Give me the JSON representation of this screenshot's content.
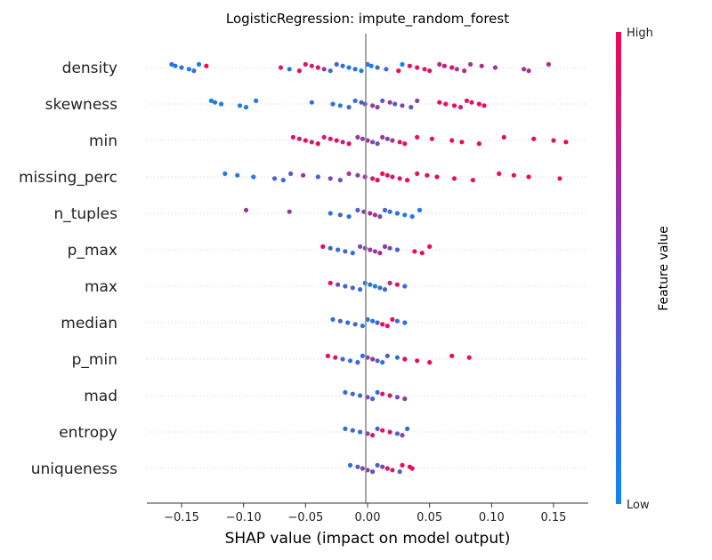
{
  "chart_data": {
    "type": "scatter",
    "subtype": "shap-beeswarm",
    "title": "LogisticRegression: impute_random_forest",
    "xlabel": "SHAP value (impact on model output)",
    "xlim": [
      -0.178,
      0.178
    ],
    "xticks": [
      -0.15,
      -0.1,
      -0.05,
      0.0,
      0.05,
      0.1,
      0.15
    ],
    "xtick_labels": [
      "−0.15",
      "−0.10",
      "−0.05",
      "0.00",
      "0.05",
      "0.10",
      "0.15"
    ],
    "grid": false,
    "colorbar": {
      "label": "Feature value",
      "high_label": "High",
      "low_label": "Low",
      "low_color": "#008bfb",
      "high_color": "#ff0052"
    },
    "features": [
      {
        "name": "density",
        "points": [
          [
            -0.158,
            0.2
          ],
          [
            -0.155,
            0.1
          ],
          [
            -0.15,
            0.15
          ],
          [
            -0.144,
            0.1
          ],
          [
            -0.14,
            0.2
          ],
          [
            -0.136,
            0.1
          ],
          [
            -0.13,
            0.95
          ],
          [
            -0.07,
            0.8
          ],
          [
            -0.063,
            0.1
          ],
          [
            -0.055,
            0.9
          ],
          [
            -0.05,
            0.85
          ],
          [
            -0.045,
            0.8
          ],
          [
            -0.04,
            0.9
          ],
          [
            -0.035,
            0.6
          ],
          [
            -0.03,
            0.2
          ],
          [
            -0.025,
            0.3
          ],
          [
            -0.02,
            0.2
          ],
          [
            -0.015,
            0.1
          ],
          [
            -0.01,
            0.2
          ],
          [
            -0.005,
            0.1
          ],
          [
            0.0,
            0.15
          ],
          [
            0.003,
            0.1
          ],
          [
            0.008,
            0.2
          ],
          [
            0.015,
            0.3
          ],
          [
            0.025,
            0.9
          ],
          [
            0.028,
            0.1
          ],
          [
            0.034,
            0.9
          ],
          [
            0.04,
            0.95
          ],
          [
            0.046,
            0.8
          ],
          [
            0.05,
            0.9
          ],
          [
            0.058,
            0.7
          ],
          [
            0.062,
            0.8
          ],
          [
            0.068,
            0.9
          ],
          [
            0.072,
            0.6
          ],
          [
            0.078,
            0.75
          ],
          [
            0.083,
            0.6
          ],
          [
            0.092,
            0.7
          ],
          [
            0.103,
            0.6
          ],
          [
            0.126,
            0.6
          ],
          [
            0.13,
            0.7
          ],
          [
            0.146,
            0.65
          ]
        ]
      },
      {
        "name": "skewness",
        "points": [
          [
            -0.126,
            0.1
          ],
          [
            -0.123,
            0.15
          ],
          [
            -0.118,
            0.1
          ],
          [
            -0.103,
            0.15
          ],
          [
            -0.098,
            0.1
          ],
          [
            -0.09,
            0.15
          ],
          [
            -0.045,
            0.2
          ],
          [
            -0.028,
            0.2
          ],
          [
            -0.022,
            0.1
          ],
          [
            -0.015,
            0.3
          ],
          [
            -0.01,
            0.2
          ],
          [
            -0.005,
            0.4
          ],
          [
            -0.002,
            0.3
          ],
          [
            0.004,
            0.6
          ],
          [
            0.008,
            0.5
          ],
          [
            0.012,
            0.4
          ],
          [
            0.018,
            0.6
          ],
          [
            0.022,
            0.3
          ],
          [
            0.028,
            0.5
          ],
          [
            0.035,
            0.4
          ],
          [
            0.04,
            0.5
          ],
          [
            0.058,
            0.95
          ],
          [
            0.063,
            0.9
          ],
          [
            0.07,
            0.95
          ],
          [
            0.075,
            0.7
          ],
          [
            0.08,
            0.8
          ],
          [
            0.084,
            0.9
          ],
          [
            0.09,
            0.95
          ],
          [
            0.094,
            0.9
          ]
        ]
      },
      {
        "name": "min",
        "points": [
          [
            -0.06,
            0.9
          ],
          [
            -0.055,
            0.8
          ],
          [
            -0.05,
            0.95
          ],
          [
            -0.045,
            0.8
          ],
          [
            -0.04,
            0.9
          ],
          [
            -0.035,
            0.8
          ],
          [
            -0.03,
            0.85
          ],
          [
            -0.025,
            0.9
          ],
          [
            -0.02,
            0.7
          ],
          [
            -0.015,
            0.85
          ],
          [
            -0.008,
            0.6
          ],
          [
            -0.004,
            0.5
          ],
          [
            0.0,
            0.7
          ],
          [
            0.004,
            0.5
          ],
          [
            0.008,
            0.4
          ],
          [
            0.012,
            0.6
          ],
          [
            0.016,
            0.5
          ],
          [
            0.02,
            0.7
          ],
          [
            0.026,
            0.9
          ],
          [
            0.03,
            0.9
          ],
          [
            0.04,
            0.9
          ],
          [
            0.052,
            0.9
          ],
          [
            0.068,
            0.95
          ],
          [
            0.076,
            0.9
          ],
          [
            0.09,
            0.95
          ],
          [
            0.11,
            0.9
          ],
          [
            0.134,
            0.95
          ],
          [
            0.15,
            0.9
          ],
          [
            0.16,
            0.95
          ]
        ]
      },
      {
        "name": "missing_perc",
        "points": [
          [
            -0.115,
            0.1
          ],
          [
            -0.105,
            0.15
          ],
          [
            -0.092,
            0.1
          ],
          [
            -0.075,
            0.3
          ],
          [
            -0.068,
            0.2
          ],
          [
            -0.062,
            0.4
          ],
          [
            -0.052,
            0.6
          ],
          [
            -0.04,
            0.3
          ],
          [
            -0.03,
            0.5
          ],
          [
            -0.022,
            0.4
          ],
          [
            -0.015,
            0.6
          ],
          [
            -0.008,
            0.5
          ],
          [
            -0.002,
            0.6
          ],
          [
            0.004,
            0.85
          ],
          [
            0.008,
            0.9
          ],
          [
            0.012,
            0.95
          ],
          [
            0.016,
            0.9
          ],
          [
            0.02,
            0.8
          ],
          [
            0.026,
            0.9
          ],
          [
            0.032,
            0.95
          ],
          [
            0.04,
            0.9
          ],
          [
            0.048,
            0.95
          ],
          [
            0.056,
            0.9
          ],
          [
            0.07,
            0.95
          ],
          [
            0.085,
            0.9
          ],
          [
            0.106,
            0.95
          ],
          [
            0.118,
            0.9
          ],
          [
            0.13,
            0.95
          ],
          [
            0.155,
            0.9
          ]
        ]
      },
      {
        "name": "n_tuples",
        "points": [
          [
            -0.098,
            0.6
          ],
          [
            -0.063,
            0.6
          ],
          [
            -0.03,
            0.2
          ],
          [
            -0.022,
            0.3
          ],
          [
            -0.015,
            0.2
          ],
          [
            -0.008,
            0.3
          ],
          [
            -0.003,
            0.5
          ],
          [
            0.002,
            0.6
          ],
          [
            0.006,
            0.7
          ],
          [
            0.01,
            0.4
          ],
          [
            0.014,
            0.3
          ],
          [
            0.018,
            0.2
          ],
          [
            0.024,
            0.2
          ],
          [
            0.03,
            0.1
          ],
          [
            0.036,
            0.15
          ],
          [
            0.042,
            0.1
          ]
        ]
      },
      {
        "name": "p_max",
        "points": [
          [
            -0.036,
            0.95
          ],
          [
            -0.03,
            0.3
          ],
          [
            -0.024,
            0.2
          ],
          [
            -0.018,
            0.3
          ],
          [
            -0.012,
            0.2
          ],
          [
            -0.006,
            0.4
          ],
          [
            -0.002,
            0.5
          ],
          [
            0.002,
            0.6
          ],
          [
            0.006,
            0.5
          ],
          [
            0.01,
            0.7
          ],
          [
            0.014,
            0.6
          ],
          [
            0.018,
            0.4
          ],
          [
            0.024,
            0.3
          ],
          [
            0.038,
            0.95
          ],
          [
            0.044,
            0.9
          ],
          [
            0.05,
            0.95
          ]
        ]
      },
      {
        "name": "max",
        "points": [
          [
            -0.03,
            0.9
          ],
          [
            -0.024,
            0.4
          ],
          [
            -0.018,
            0.2
          ],
          [
            -0.012,
            0.3
          ],
          [
            -0.006,
            0.2
          ],
          [
            -0.002,
            0.15
          ],
          [
            0.002,
            0.2
          ],
          [
            0.006,
            0.1
          ],
          [
            0.01,
            0.2
          ],
          [
            0.014,
            0.3
          ],
          [
            0.018,
            0.7
          ],
          [
            0.024,
            0.9
          ],
          [
            0.03,
            0.2
          ]
        ]
      },
      {
        "name": "median",
        "points": [
          [
            -0.028,
            0.2
          ],
          [
            -0.022,
            0.3
          ],
          [
            -0.016,
            0.2
          ],
          [
            -0.01,
            0.3
          ],
          [
            -0.004,
            0.1
          ],
          [
            0.0,
            0.2
          ],
          [
            0.004,
            0.15
          ],
          [
            0.008,
            0.3
          ],
          [
            0.012,
            0.95
          ],
          [
            0.016,
            0.9
          ],
          [
            0.02,
            0.95
          ],
          [
            0.024,
            0.2
          ],
          [
            0.03,
            0.2
          ]
        ]
      },
      {
        "name": "p_min",
        "points": [
          [
            -0.032,
            0.95
          ],
          [
            -0.026,
            0.9
          ],
          [
            -0.02,
            0.3
          ],
          [
            -0.014,
            0.2
          ],
          [
            -0.008,
            0.3
          ],
          [
            -0.004,
            0.2
          ],
          [
            0.0,
            0.5
          ],
          [
            0.004,
            0.6
          ],
          [
            0.008,
            0.3
          ],
          [
            0.012,
            0.2
          ],
          [
            0.016,
            0.3
          ],
          [
            0.024,
            0.2
          ],
          [
            0.03,
            0.95
          ],
          [
            0.04,
            0.9
          ],
          [
            0.05,
            0.95
          ],
          [
            0.068,
            0.9
          ],
          [
            0.082,
            0.95
          ]
        ]
      },
      {
        "name": "mad",
        "points": [
          [
            -0.018,
            0.2
          ],
          [
            -0.012,
            0.3
          ],
          [
            -0.006,
            0.2
          ],
          [
            0.0,
            0.5
          ],
          [
            0.004,
            0.3
          ],
          [
            0.008,
            0.2
          ],
          [
            0.012,
            0.9
          ],
          [
            0.018,
            0.8
          ],
          [
            0.024,
            0.4
          ],
          [
            0.03,
            0.6
          ]
        ]
      },
      {
        "name": "entropy",
        "points": [
          [
            -0.018,
            0.2
          ],
          [
            -0.012,
            0.3
          ],
          [
            -0.006,
            0.2
          ],
          [
            0.0,
            0.6
          ],
          [
            0.004,
            0.8
          ],
          [
            0.008,
            0.3
          ],
          [
            0.012,
            0.9
          ],
          [
            0.018,
            0.85
          ],
          [
            0.024,
            0.3
          ],
          [
            0.028,
            0.5
          ],
          [
            0.032,
            0.2
          ]
        ]
      },
      {
        "name": "uniqueness",
        "points": [
          [
            -0.014,
            0.2
          ],
          [
            -0.008,
            0.3
          ],
          [
            -0.004,
            0.5
          ],
          [
            0.0,
            0.6
          ],
          [
            0.004,
            0.4
          ],
          [
            0.008,
            0.3
          ],
          [
            0.012,
            0.5
          ],
          [
            0.016,
            0.9
          ],
          [
            0.02,
            0.8
          ],
          [
            0.026,
            0.3
          ],
          [
            0.028,
            0.95
          ],
          [
            0.034,
            0.9
          ],
          [
            0.036,
            0.95
          ]
        ]
      }
    ]
  }
}
